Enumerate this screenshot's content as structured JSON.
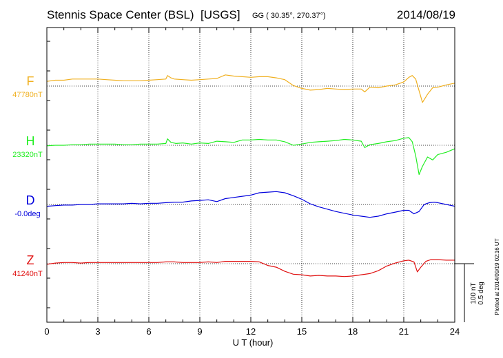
{
  "header": {
    "station": "Stennis Space Center (BSL)",
    "agency": "[USGS]",
    "coords": "GG ( 30.35°, 270.37°)",
    "date": "2014/08/19"
  },
  "scale_label_1": "100 nT",
  "scale_label_2": "0.5 deg",
  "plotted_note": "Plotted at 2014/09/19 02:16 UT",
  "chart_data": {
    "type": "line",
    "xlabel": "U T (hour)",
    "xlim": [
      0,
      24
    ],
    "xticks": [
      "0",
      "3",
      "6",
      "9",
      "12",
      "15",
      "18",
      "21",
      "24"
    ],
    "grid": true,
    "units_per_scale": "100 nT / 0.5 deg per scale bar",
    "series": [
      {
        "name": "F",
        "baseline_label": "47780nT",
        "color": "#f0b020",
        "x": [
          0,
          0.5,
          1,
          1.5,
          2,
          2.5,
          3,
          3.5,
          4,
          4.5,
          5,
          5.5,
          6,
          6.5,
          7,
          7.1,
          7.3,
          7.5,
          8,
          8.5,
          9,
          9.5,
          10,
          10.5,
          11,
          11.5,
          12,
          12.5,
          13,
          13.5,
          14,
          14.5,
          15,
          15.5,
          16,
          16.5,
          17,
          17.5,
          18,
          18.5,
          18.7,
          19,
          19.5,
          20,
          20.5,
          21,
          21.3,
          21.5,
          21.7,
          21.9,
          22.1,
          22.4,
          22.7,
          23,
          23.5,
          24
        ],
        "y": [
          8,
          10,
          10,
          12,
          12,
          12,
          12,
          11,
          10,
          9,
          9,
          9,
          10,
          11,
          12,
          18,
          14,
          12,
          11,
          10,
          11,
          12,
          13,
          19,
          17,
          16,
          15,
          16,
          16,
          14,
          11,
          1,
          -4,
          -7,
          -6,
          -4,
          -5,
          -6,
          -5,
          -5,
          -10,
          -2,
          -3,
          0,
          2,
          7,
          15,
          18,
          12,
          -8,
          -28,
          -14,
          -3,
          -2,
          2,
          5
        ]
      },
      {
        "name": "H",
        "baseline_label": "23320nT",
        "color": "#22ee22",
        "x": [
          0,
          0.5,
          1,
          1.5,
          2,
          2.5,
          3,
          3.5,
          4,
          4.5,
          5,
          5.5,
          6,
          6.5,
          7,
          7.1,
          7.3,
          7.6,
          8,
          8.5,
          9,
          9.5,
          10,
          10.5,
          11,
          11.5,
          12,
          12.5,
          13,
          13.5,
          14,
          14.5,
          15,
          15.5,
          16,
          16.5,
          17,
          17.5,
          18,
          18.5,
          18.7,
          19,
          19.5,
          20,
          20.5,
          21,
          21.3,
          21.5,
          21.7,
          21.9,
          22.1,
          22.4,
          22.7,
          23,
          23.5,
          24
        ],
        "y": [
          -1,
          0,
          0,
          1,
          1,
          2,
          2,
          2,
          2,
          1,
          1,
          2,
          2,
          2,
          3,
          11,
          5,
          3,
          4,
          2,
          4,
          3,
          7,
          6,
          5,
          9,
          9,
          10,
          9,
          9,
          6,
          0,
          2,
          5,
          6,
          7,
          8,
          10,
          9,
          7,
          -4,
          1,
          3,
          6,
          8,
          12,
          13,
          6,
          -18,
          -50,
          -36,
          -20,
          -25,
          -16,
          -12,
          -6
        ]
      },
      {
        "name": "D",
        "baseline_label": "-0.0deg",
        "color": "#0000dd",
        "x": [
          0,
          0.5,
          1,
          1.5,
          2,
          2.5,
          3,
          3.5,
          4,
          4.5,
          5,
          5.5,
          6,
          6.5,
          7,
          7.5,
          8,
          8.5,
          9,
          9.5,
          10,
          10.5,
          11,
          11.5,
          12,
          12.5,
          13,
          13.5,
          14,
          14.5,
          15,
          15.5,
          16,
          16.5,
          17,
          17.5,
          18,
          18.5,
          19,
          19.5,
          20,
          20.5,
          21,
          21.3,
          21.6,
          21.9,
          22.2,
          22.5,
          22.8,
          23,
          23.5,
          24
        ],
        "y": [
          -3,
          -2,
          -1,
          -1,
          0,
          0,
          1,
          1,
          1,
          1,
          2,
          1,
          2,
          2,
          3,
          4,
          4,
          6,
          7,
          8,
          5,
          10,
          12,
          14,
          16,
          20,
          21,
          22,
          20,
          15,
          9,
          1,
          -4,
          -8,
          -12,
          -15,
          -18,
          -20,
          -22,
          -20,
          -16,
          -13,
          -10,
          -10,
          -16,
          -12,
          0,
          3,
          4,
          3,
          0,
          -3
        ]
      },
      {
        "name": "Z",
        "baseline_label": "41240nT",
        "color": "#e01010",
        "x": [
          0,
          0.5,
          1,
          1.5,
          2,
          2.5,
          3,
          3.5,
          4,
          4.5,
          5,
          5.5,
          6,
          6.5,
          7,
          7.5,
          8,
          8.5,
          9,
          9.5,
          10,
          10.5,
          11,
          11.5,
          12,
          12.5,
          13,
          13.5,
          14,
          14.5,
          15,
          15.5,
          16,
          16.5,
          17,
          17.5,
          18,
          18.5,
          19,
          19.5,
          20,
          20.5,
          21,
          21.3,
          21.6,
          21.8,
          22,
          22.3,
          22.6,
          23,
          23.5,
          24
        ],
        "y": [
          -1,
          1,
          2,
          2,
          1,
          2,
          2,
          2,
          2,
          2,
          2,
          2,
          2,
          2,
          3,
          3,
          2,
          2,
          2,
          3,
          2,
          4,
          4,
          4,
          4,
          3,
          -3,
          -6,
          -13,
          -18,
          -19,
          -21,
          -20,
          -21,
          -21,
          -22,
          -21,
          -19,
          -17,
          -12,
          -4,
          1,
          5,
          6,
          3,
          -14,
          -6,
          4,
          7,
          7,
          6,
          6
        ]
      }
    ]
  }
}
